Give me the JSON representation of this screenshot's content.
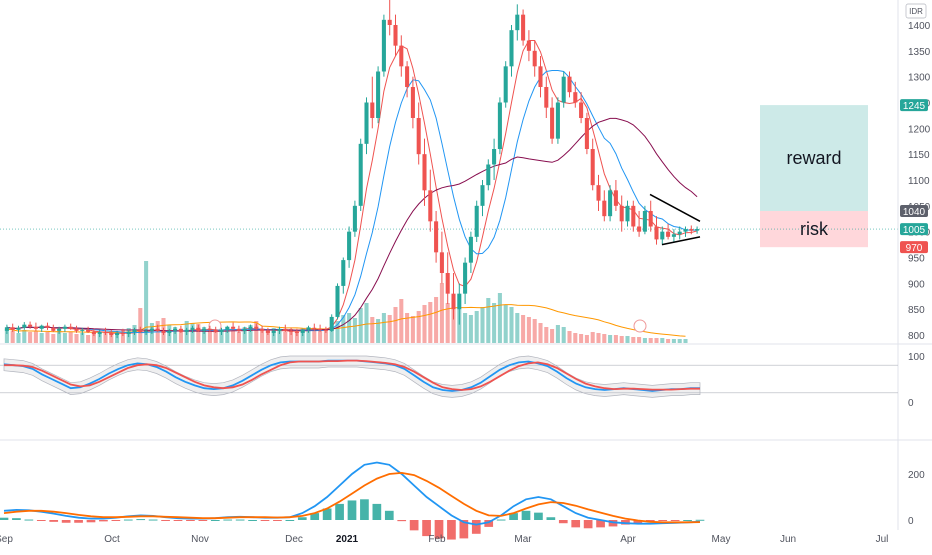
{
  "chart_data": {
    "type": "candlestick",
    "currency": "IDR",
    "y_ticks": [
      1400,
      1350,
      1300,
      1250,
      1200,
      1150,
      1100,
      1050,
      1000,
      950,
      900,
      850,
      800
    ],
    "y_range": [
      790,
      1440
    ],
    "x_labels": [
      {
        "text": "Sep",
        "bold": false
      },
      {
        "text": "Oct",
        "bold": false
      },
      {
        "text": "Nov",
        "bold": false
      },
      {
        "text": "Dec",
        "bold": false
      },
      {
        "text": "2021",
        "bold": true
      },
      {
        "text": "Feb",
        "bold": false
      },
      {
        "text": "Mar",
        "bold": false
      },
      {
        "text": "Apr",
        "bold": false
      },
      {
        "text": "May",
        "bold": false
      },
      {
        "text": "Jun",
        "bold": false
      },
      {
        "text": "Jul",
        "bold": false
      }
    ],
    "price_labels": [
      {
        "text": "1245",
        "value": 1245,
        "color": "#26a69a"
      },
      {
        "text": "1040",
        "value": 1040,
        "color": "#5d606b"
      },
      {
        "text": "1005",
        "value": 1005,
        "color": "#26a69a"
      },
      {
        "text": "970",
        "value": 970,
        "color": "#ef5350"
      }
    ],
    "zones": {
      "reward": {
        "label": "reward",
        "from": 1040,
        "to": 1245,
        "color": "#b2dfdb"
      },
      "risk": {
        "label": "risk",
        "from": 970,
        "to": 1040,
        "color": "#ffcdd2"
      }
    },
    "candles": [
      [
        808,
        820,
        802,
        815
      ],
      [
        815,
        822,
        806,
        810
      ],
      [
        810,
        818,
        804,
        814
      ],
      [
        814,
        825,
        810,
        820
      ],
      [
        820,
        826,
        812,
        816
      ],
      [
        816,
        824,
        808,
        812
      ],
      [
        812,
        820,
        806,
        818
      ],
      [
        818,
        824,
        810,
        814
      ],
      [
        814,
        820,
        806,
        808
      ],
      [
        808,
        816,
        802,
        812
      ],
      [
        812,
        820,
        806,
        816
      ],
      [
        816,
        822,
        810,
        812
      ],
      [
        812,
        818,
        804,
        808
      ],
      [
        808,
        814,
        800,
        810
      ],
      [
        810,
        816,
        804,
        806
      ],
      [
        806,
        812,
        798,
        802
      ],
      [
        802,
        810,
        796,
        806
      ],
      [
        806,
        814,
        800,
        804
      ],
      [
        804,
        810,
        796,
        800
      ],
      [
        800,
        808,
        794,
        804
      ],
      [
        804,
        812,
        798,
        802
      ],
      [
        802,
        810,
        796,
        806
      ],
      [
        806,
        814,
        800,
        810
      ],
      [
        810,
        816,
        804,
        806
      ],
      [
        806,
        812,
        800,
        808
      ],
      [
        808,
        816,
        802,
        812
      ],
      [
        812,
        820,
        806,
        808
      ],
      [
        808,
        814,
        800,
        804
      ],
      [
        804,
        812,
        798,
        808
      ],
      [
        808,
        816,
        802,
        812
      ],
      [
        812,
        818,
        804,
        806
      ],
      [
        806,
        814,
        800,
        810
      ],
      [
        810,
        818,
        804,
        814
      ],
      [
        814,
        820,
        806,
        808
      ],
      [
        808,
        816,
        802,
        812
      ],
      [
        812,
        818,
        806,
        810
      ],
      [
        810,
        816,
        804,
        806
      ],
      [
        806,
        814,
        800,
        810
      ],
      [
        810,
        818,
        804,
        816
      ],
      [
        816,
        824,
        810,
        812
      ],
      [
        812,
        818,
        804,
        808
      ],
      [
        808,
        816,
        802,
        812
      ],
      [
        812,
        820,
        806,
        816
      ],
      [
        816,
        822,
        810,
        812
      ],
      [
        812,
        818,
        804,
        808
      ],
      [
        808,
        814,
        800,
        804
      ],
      [
        804,
        812,
        798,
        808
      ],
      [
        808,
        816,
        802,
        812
      ],
      [
        812,
        820,
        806,
        808
      ],
      [
        808,
        814,
        800,
        806
      ],
      [
        806,
        812,
        798,
        804
      ],
      [
        804,
        812,
        798,
        810
      ],
      [
        810,
        818,
        804,
        814
      ],
      [
        814,
        822,
        808,
        812
      ],
      [
        812,
        820,
        806,
        810
      ],
      [
        810,
        816,
        804,
        808
      ],
      [
        808,
        840,
        806,
        835
      ],
      [
        835,
        900,
        830,
        895
      ],
      [
        895,
        950,
        880,
        945
      ],
      [
        945,
        1010,
        930,
        1000
      ],
      [
        1000,
        1060,
        990,
        1050
      ],
      [
        1050,
        1180,
        1040,
        1170
      ],
      [
        1170,
        1260,
        1150,
        1250
      ],
      [
        1250,
        1300,
        1200,
        1220
      ],
      [
        1220,
        1320,
        1210,
        1310
      ],
      [
        1310,
        1420,
        1300,
        1410
      ],
      [
        1410,
        1450,
        1380,
        1400
      ],
      [
        1400,
        1420,
        1340,
        1360
      ],
      [
        1360,
        1380,
        1300,
        1320
      ],
      [
        1320,
        1330,
        1260,
        1280
      ],
      [
        1280,
        1300,
        1200,
        1220
      ],
      [
        1220,
        1250,
        1130,
        1150
      ],
      [
        1150,
        1180,
        1050,
        1080
      ],
      [
        1080,
        1120,
        1000,
        1020
      ],
      [
        1020,
        1040,
        940,
        960
      ],
      [
        960,
        1000,
        900,
        920
      ],
      [
        920,
        960,
        860,
        880
      ],
      [
        880,
        920,
        830,
        850
      ],
      [
        850,
        900,
        820,
        880
      ],
      [
        880,
        950,
        860,
        940
      ],
      [
        940,
        1000,
        920,
        990
      ],
      [
        990,
        1060,
        980,
        1050
      ],
      [
        1050,
        1100,
        1030,
        1090
      ],
      [
        1090,
        1140,
        1080,
        1130
      ],
      [
        1130,
        1180,
        1100,
        1160
      ],
      [
        1160,
        1260,
        1150,
        1250
      ],
      [
        1250,
        1330,
        1240,
        1320
      ],
      [
        1320,
        1400,
        1300,
        1390
      ],
      [
        1390,
        1440,
        1370,
        1420
      ],
      [
        1420,
        1430,
        1360,
        1370
      ],
      [
        1370,
        1390,
        1330,
        1350
      ],
      [
        1350,
        1370,
        1300,
        1320
      ],
      [
        1320,
        1340,
        1260,
        1280
      ],
      [
        1280,
        1300,
        1220,
        1240
      ],
      [
        1240,
        1260,
        1170,
        1180
      ],
      [
        1180,
        1260,
        1170,
        1250
      ],
      [
        1250,
        1310,
        1240,
        1300
      ],
      [
        1300,
        1310,
        1260,
        1270
      ],
      [
        1270,
        1290,
        1240,
        1250
      ],
      [
        1250,
        1270,
        1210,
        1220
      ],
      [
        1220,
        1230,
        1150,
        1160
      ],
      [
        1160,
        1180,
        1080,
        1090
      ],
      [
        1090,
        1110,
        1040,
        1060
      ],
      [
        1060,
        1080,
        1020,
        1030
      ],
      [
        1030,
        1090,
        1020,
        1080
      ],
      [
        1080,
        1100,
        1040,
        1050
      ],
      [
        1050,
        1070,
        1000,
        1020
      ],
      [
        1020,
        1060,
        1010,
        1050
      ],
      [
        1050,
        1060,
        1000,
        1010
      ],
      [
        1010,
        1040,
        990,
        1000
      ],
      [
        1000,
        1050,
        995,
        1040
      ],
      [
        1040,
        1060,
        1000,
        1010
      ],
      [
        1010,
        1030,
        975,
        985
      ],
      [
        985,
        1010,
        975,
        1000
      ],
      [
        1000,
        1015,
        985,
        990
      ],
      [
        990,
        1005,
        980,
        995
      ],
      [
        995,
        1010,
        985,
        1000
      ],
      [
        1000,
        1010,
        990,
        1005
      ],
      [
        1005,
        1012,
        995,
        1002
      ],
      [
        1002,
        1010,
        996,
        1005
      ]
    ],
    "volume": [
      14,
      12,
      10,
      13,
      11,
      12,
      10,
      11,
      9,
      12,
      10,
      11,
      9,
      10,
      8,
      11,
      9,
      10,
      12,
      11,
      13,
      15,
      18,
      35,
      82,
      20,
      22,
      25,
      18,
      16,
      14,
      22,
      20,
      19,
      16,
      15,
      12,
      13,
      14,
      12,
      11,
      16,
      18,
      22,
      14,
      13,
      15,
      12,
      11,
      14,
      13,
      15,
      16,
      13,
      12,
      14,
      16,
      22,
      28,
      30,
      25,
      35,
      40,
      26,
      24,
      30,
      28,
      36,
      44,
      30,
      27,
      32,
      38,
      41,
      46,
      60,
      40,
      42,
      34,
      30,
      28,
      32,
      36,
      45,
      40,
      50,
      38,
      36,
      30,
      28,
      26,
      24,
      20,
      16,
      14,
      18,
      16,
      12,
      10,
      9,
      8,
      11,
      10,
      9,
      8,
      8,
      7,
      7,
      6,
      6,
      5,
      5,
      5,
      5,
      4,
      4,
      4,
      4
    ],
    "stoch": {
      "k": [
        82,
        80,
        78,
        72,
        60,
        50,
        40,
        30,
        32,
        40,
        50,
        62,
        72,
        80,
        84,
        82,
        76,
        66,
        54,
        44,
        36,
        30,
        28,
        30,
        36,
        46,
        58,
        70,
        80,
        86,
        88,
        88,
        88,
        88,
        90,
        90,
        90,
        90,
        88,
        86,
        84,
        80,
        72,
        58,
        44,
        32,
        26,
        24,
        26,
        32,
        42,
        56,
        70,
        80,
        86,
        88,
        84,
        78,
        66,
        52,
        40,
        32,
        28,
        26,
        28,
        30,
        28,
        26,
        24,
        26,
        28,
        28,
        30,
        30
      ],
      "d": [
        80,
        80,
        79,
        76,
        68,
        58,
        48,
        38,
        34,
        36,
        44,
        54,
        64,
        74,
        80,
        82,
        80,
        74,
        64,
        54,
        44,
        36,
        32,
        30,
        32,
        38,
        48,
        60,
        70,
        80,
        86,
        88,
        88,
        88,
        89,
        89,
        90,
        90,
        89,
        87,
        85,
        82,
        76,
        66,
        54,
        42,
        32,
        28,
        26,
        28,
        34,
        44,
        56,
        68,
        78,
        84,
        86,
        82,
        74,
        62,
        50,
        40,
        34,
        30,
        28,
        29,
        29,
        28,
        27,
        27,
        27,
        28,
        29,
        29
      ]
    },
    "macd": {
      "line": [
        40,
        44,
        42,
        36,
        28,
        18,
        10,
        6,
        6,
        10,
        16,
        20,
        18,
        12,
        8,
        6,
        6,
        8,
        12,
        14,
        12,
        10,
        10,
        12,
        30,
        60,
        100,
        150,
        200,
        240,
        250,
        240,
        200,
        150,
        100,
        60,
        20,
        -10,
        -20,
        -10,
        20,
        60,
        90,
        100,
        90,
        60,
        30,
        10,
        0,
        -10,
        -14,
        -16,
        -16,
        -14,
        -12,
        -10,
        -8
      ],
      "signal": [
        30,
        36,
        40,
        40,
        36,
        30,
        22,
        16,
        12,
        12,
        14,
        16,
        16,
        14,
        12,
        10,
        8,
        8,
        10,
        12,
        12,
        12,
        11,
        12,
        18,
        30,
        50,
        80,
        115,
        150,
        180,
        200,
        205,
        195,
        170,
        140,
        105,
        70,
        40,
        20,
        18,
        30,
        50,
        68,
        78,
        74,
        62,
        46,
        32,
        18,
        6,
        -2,
        -8,
        -10,
        -10,
        -10,
        -9
      ],
      "hist": [
        10,
        8,
        2,
        -4,
        -8,
        -12,
        -12,
        -10,
        -6,
        -2,
        2,
        4,
        2,
        -2,
        -4,
        -4,
        -2,
        0,
        2,
        2,
        0,
        -2,
        -1,
        0,
        12,
        30,
        50,
        70,
        85,
        90,
        70,
        40,
        -5,
        -45,
        -70,
        -80,
        -85,
        -80,
        -60,
        -30,
        2,
        30,
        40,
        32,
        12,
        -14,
        -32,
        -36,
        -32,
        -28,
        -20,
        -14,
        -8,
        -4,
        -2,
        0,
        1
      ]
    }
  }
}
